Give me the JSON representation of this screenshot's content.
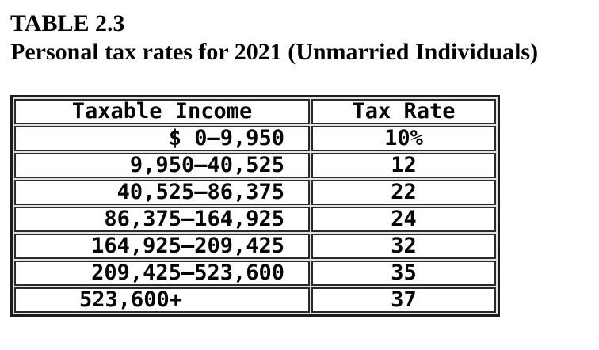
{
  "header": {
    "label": "TABLE 2.3",
    "title": "Personal tax rates for 2021 (Unmarried Individuals)"
  },
  "table": {
    "columns": [
      "Taxable Income",
      "Tax Rate"
    ],
    "rows": [
      {
        "income": "$ 0–9,950",
        "rate": "10%"
      },
      {
        "income": "9,950–40,525",
        "rate": "12"
      },
      {
        "income": "40,525–86,375",
        "rate": "22"
      },
      {
        "income": "86,375–164,925",
        "rate": "24"
      },
      {
        "income": "164,925–209,425",
        "rate": "32"
      },
      {
        "income": "209,425–523,600",
        "rate": "35"
      },
      {
        "income": "523,600+",
        "rate": "37"
      }
    ]
  },
  "colors": {
    "text": "#000000",
    "outer_border": "#1c1c1c",
    "cell_border": "#2a2a2a",
    "background": "#ffffff"
  }
}
